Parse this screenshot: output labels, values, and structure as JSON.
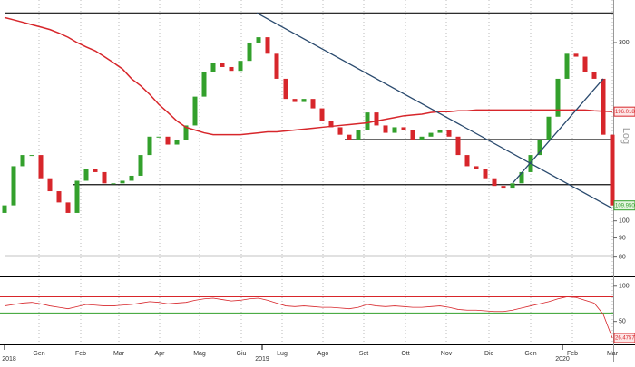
{
  "chart_data": {
    "type": "candlestick",
    "log_scale": true,
    "scale_label": "Log",
    "up_color": "#33a02c",
    "down_color": "#d7262b",
    "open": [
      105,
      110,
      140,
      150,
      150,
      130,
      120,
      112,
      105,
      128,
      138,
      135,
      126,
      126,
      128,
      132,
      150,
      168,
      168,
      160,
      165,
      180,
      215,
      250,
      265,
      258,
      252,
      268,
      300,
      310,
      280,
      240,
      212,
      208,
      212,
      200,
      185,
      178,
      170,
      165,
      175,
      195,
      180,
      172,
      178,
      175,
      165,
      168,
      172,
      175,
      168,
      150,
      140,
      138,
      130,
      124,
      122,
      126,
      135,
      150,
      165,
      190,
      240,
      280,
      275,
      250,
      240,
      170
    ],
    "close": [
      110,
      140,
      150,
      150,
      130,
      120,
      112,
      105,
      128,
      138,
      135,
      126,
      126,
      128,
      132,
      150,
      168,
      168,
      160,
      165,
      180,
      215,
      250,
      265,
      258,
      252,
      268,
      300,
      310,
      280,
      240,
      212,
      208,
      212,
      200,
      185,
      178,
      170,
      165,
      175,
      195,
      180,
      172,
      178,
      175,
      165,
      168,
      172,
      175,
      168,
      150,
      140,
      138,
      130,
      124,
      122,
      126,
      135,
      150,
      165,
      190,
      240,
      280,
      275,
      250,
      240,
      170,
      109.95
    ],
    "last_price": {
      "value": 109.95,
      "label": "109.9500"
    },
    "ma": {
      "color": "#d7262b",
      "values": [
        350,
        345,
        340,
        335,
        330,
        325,
        318,
        310,
        300,
        292,
        285,
        275,
        265,
        255,
        240,
        230,
        218,
        205,
        195,
        185,
        178,
        175,
        172,
        170,
        170,
        170,
        170,
        171,
        172,
        173,
        173,
        174,
        175,
        176,
        177,
        178,
        179,
        180,
        181,
        182,
        183,
        185,
        187,
        189,
        191,
        192,
        193,
        195,
        196,
        196,
        197,
        197,
        198,
        198,
        198,
        198,
        198,
        198,
        198,
        198,
        198,
        198,
        198,
        198,
        198,
        197,
        196.5,
        196.0184
      ]
    },
    "ylim": [
      71,
      390
    ],
    "yticks": [
      300,
      100,
      90,
      80
    ],
    "levels": [
      {
        "value": 360,
        "from": 0
      },
      {
        "value": 165,
        "from": 37.5
      },
      {
        "value": 125,
        "from": 7.5
      },
      {
        "value": 80.5,
        "from": 0
      }
    ],
    "trendlines": [
      {
        "x": [
          27.8,
          67
        ],
        "y": [
          360,
          108
        ],
        "color": "#2a4a6e"
      },
      {
        "x": [
          56,
          66
        ],
        "y": [
          126,
          240
        ],
        "color": "#2a4a6e"
      }
    ],
    "xticks": [
      {
        "value": 3.8,
        "label": "Gen"
      },
      {
        "value": 8.4,
        "label": "Feb"
      },
      {
        "value": 12.6,
        "label": "Mar"
      },
      {
        "value": 17.1,
        "label": "Apr"
      },
      {
        "value": 21.5,
        "label": "Mag"
      },
      {
        "value": 26.1,
        "label": "Giu"
      },
      {
        "value": 30.6,
        "label": "Lug"
      },
      {
        "value": 35.1,
        "label": "Ago"
      },
      {
        "value": 39.6,
        "label": "Set"
      },
      {
        "value": 44.2,
        "label": "Ott"
      },
      {
        "value": 48.7,
        "label": "Nov"
      },
      {
        "value": 53.4,
        "label": "Dic"
      },
      {
        "value": 58,
        "label": "Gen"
      },
      {
        "value": 62.6,
        "label": "Feb"
      },
      {
        "value": 67,
        "label": "Mar"
      }
    ],
    "years": [
      {
        "value": 0,
        "label": "2018"
      },
      {
        "value": 28.4,
        "label": "2019"
      },
      {
        "value": 61.5,
        "label": "2020"
      }
    ],
    "rsi": {
      "color": "#d7262b",
      "ylim": [
        20,
        110
      ],
      "yticks": [
        100,
        50
      ],
      "levels": [
        {
          "value": 85,
          "color": "#d7262b"
        },
        {
          "value": 62,
          "color": "#33a02c"
        }
      ],
      "values": [
        72,
        74,
        76,
        77,
        75,
        72,
        70,
        68,
        71,
        74,
        73,
        72,
        72,
        73,
        74,
        76,
        78,
        77,
        75,
        76,
        77,
        80,
        82,
        83,
        81,
        79,
        80,
        82,
        83,
        80,
        76,
        72,
        71,
        72,
        71,
        70,
        70,
        69,
        68,
        70,
        74,
        72,
        71,
        72,
        71,
        70,
        70,
        71,
        72,
        70,
        67,
        66,
        66,
        65,
        64,
        64,
        66,
        69,
        72,
        75,
        78,
        82,
        85,
        84,
        80,
        76,
        60,
        26.4757
      ]
    }
  }
}
